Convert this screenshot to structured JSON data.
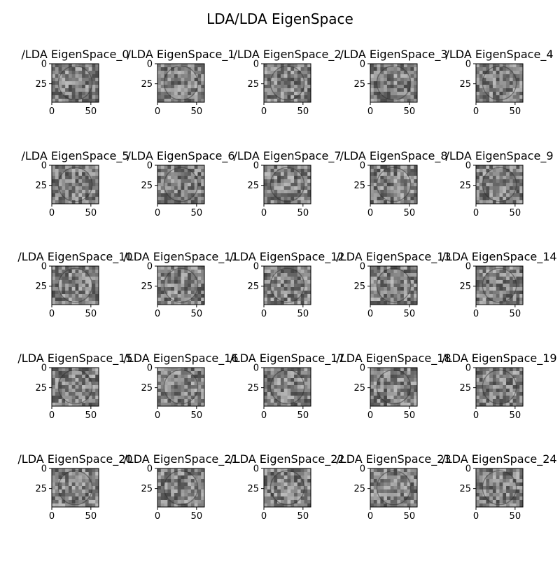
{
  "chart_data": {
    "type": "heatmap",
    "title": "LDA/LDA EigenSpace",
    "grid": false,
    "colormap": "gray",
    "rows": 5,
    "cols": 5,
    "x_ticks": [
      "0",
      "50"
    ],
    "y_ticks": [
      "0",
      "25"
    ],
    "xlim": [
      0,
      60
    ],
    "ylim": [
      48,
      0
    ],
    "panels": [
      {
        "title": "/LDA EigenSpace_0"
      },
      {
        "title": "/LDA EigenSpace_1"
      },
      {
        "title": "/LDA EigenSpace_2"
      },
      {
        "title": "/LDA EigenSpace_3"
      },
      {
        "title": "/LDA EigenSpace_4"
      },
      {
        "title": "/LDA EigenSpace_5"
      },
      {
        "title": "/LDA EigenSpace_6"
      },
      {
        "title": "/LDA EigenSpace_7"
      },
      {
        "title": "/LDA EigenSpace_8"
      },
      {
        "title": "/LDA EigenSpace_9"
      },
      {
        "title": "/LDA EigenSpace_10"
      },
      {
        "title": "/LDA EigenSpace_11"
      },
      {
        "title": "/LDA EigenSpace_12"
      },
      {
        "title": "/LDA EigenSpace_13"
      },
      {
        "title": "/LDA EigenSpace_14"
      },
      {
        "title": "/LDA EigenSpace_15"
      },
      {
        "title": "/LDA EigenSpace_16"
      },
      {
        "title": "/LDA EigenSpace_17"
      },
      {
        "title": "/LDA EigenSpace_18"
      },
      {
        "title": "/LDA EigenSpace_19"
      },
      {
        "title": "/LDA EigenSpace_20"
      },
      {
        "title": "/LDA EigenSpace_21"
      },
      {
        "title": "/LDA EigenSpace_22"
      },
      {
        "title": "/LDA EigenSpace_23"
      },
      {
        "title": "/LDA EigenSpace_24"
      }
    ]
  }
}
